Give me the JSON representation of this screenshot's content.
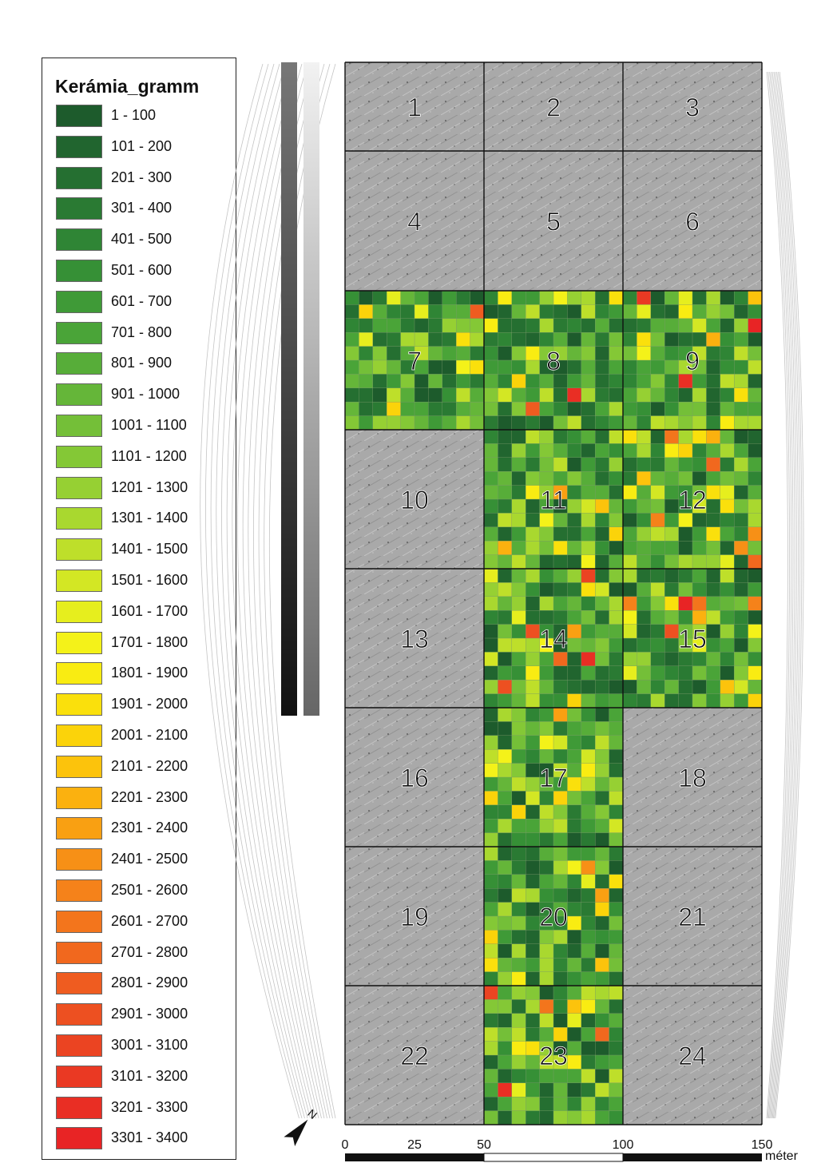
{
  "legend": {
    "title": "Kerámia_gramm",
    "classes": [
      {
        "label": "1 - 100",
        "color": "#1d5b2c"
      },
      {
        "label": "101 - 200",
        "color": "#21652f"
      },
      {
        "label": "201 - 300",
        "color": "#256f31"
      },
      {
        "label": "301 - 400",
        "color": "#2a7a33"
      },
      {
        "label": "401 - 500",
        "color": "#2f8535"
      },
      {
        "label": "501 - 600",
        "color": "#369036"
      },
      {
        "label": "601 - 700",
        "color": "#3f9a37"
      },
      {
        "label": "701 - 800",
        "color": "#4aa438"
      },
      {
        "label": "801 - 900",
        "color": "#57ad39"
      },
      {
        "label": "901 - 1000",
        "color": "#65b639"
      },
      {
        "label": "1001 - 1100",
        "color": "#74bf38"
      },
      {
        "label": "1101 - 1200",
        "color": "#84c836"
      },
      {
        "label": "1201 - 1300",
        "color": "#96d033"
      },
      {
        "label": "1301 - 1400",
        "color": "#a9d82f"
      },
      {
        "label": "1401 - 1500",
        "color": "#bedf2a"
      },
      {
        "label": "1501 - 1600",
        "color": "#d3e724"
      },
      {
        "label": "1601 - 1700",
        "color": "#e6ee1e"
      },
      {
        "label": "1701 - 1800",
        "color": "#f4f219"
      },
      {
        "label": "1801 - 1900",
        "color": "#f9ec12"
      },
      {
        "label": "1901 - 2000",
        "color": "#fae00c"
      },
      {
        "label": "2001 - 2100",
        "color": "#fbd30a"
      },
      {
        "label": "2101 - 2200",
        "color": "#fcc30c"
      },
      {
        "label": "2201 - 2300",
        "color": "#fbb10f"
      },
      {
        "label": "2301 - 2400",
        "color": "#f9a012"
      },
      {
        "label": "2401 - 2500",
        "color": "#f79016"
      },
      {
        "label": "2501 - 2600",
        "color": "#f5821a"
      },
      {
        "label": "2601 - 2700",
        "color": "#f3751c"
      },
      {
        "label": "2701 - 2800",
        "color": "#f1681e"
      },
      {
        "label": "2801 - 2900",
        "color": "#ef5c20"
      },
      {
        "label": "2901 - 3000",
        "color": "#ed5021"
      },
      {
        "label": "3001 - 3100",
        "color": "#eb4422"
      },
      {
        "label": "3101 - 3200",
        "color": "#ea3923"
      },
      {
        "label": "3201 - 3300",
        "color": "#e92e24"
      },
      {
        "label": "3301 - 3400",
        "color": "#e82425"
      }
    ]
  },
  "map": {
    "cells": [
      "1",
      "2",
      "3",
      "4",
      "5",
      "6",
      "7",
      "8",
      "9",
      "10",
      "11",
      "12",
      "13",
      "14",
      "15",
      "16",
      "17",
      "18",
      "19",
      "20",
      "21",
      "22",
      "23",
      "24"
    ],
    "sampled_cells": [
      "7",
      "8",
      "9",
      "11",
      "12",
      "14",
      "15",
      "17",
      "20",
      "23"
    ]
  },
  "scale_bar": {
    "ticks": [
      "0",
      "25",
      "50",
      "100",
      "150"
    ],
    "unit": "méter"
  },
  "north_arrow": {
    "label": "N",
    "icon": "north-arrow-icon"
  }
}
